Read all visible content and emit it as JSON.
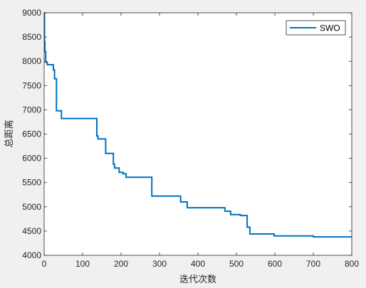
{
  "chart_data": {
    "type": "line",
    "title": "",
    "xlabel": "迭代次数",
    "ylabel": "总距离",
    "xlim": [
      0,
      800
    ],
    "ylim": [
      4000,
      9000
    ],
    "xticks": [
      0,
      100,
      200,
      300,
      400,
      500,
      600,
      700,
      800
    ],
    "yticks": [
      4000,
      4500,
      5000,
      5500,
      6000,
      6500,
      7000,
      7500,
      8000,
      8500,
      9000
    ],
    "grid": false,
    "legend": {
      "placement": "top-right"
    },
    "series": [
      {
        "name": "SWO",
        "color": "#0072bd",
        "step": true,
        "points": [
          [
            0,
            9000
          ],
          [
            1,
            8400
          ],
          [
            2,
            8200
          ],
          [
            4,
            7980
          ],
          [
            8,
            7930
          ],
          [
            24,
            7820
          ],
          [
            27,
            7640
          ],
          [
            32,
            6980
          ],
          [
            45,
            6820
          ],
          [
            137,
            6460
          ],
          [
            140,
            6400
          ],
          [
            160,
            6100
          ],
          [
            180,
            5880
          ],
          [
            183,
            5800
          ],
          [
            195,
            5710
          ],
          [
            205,
            5680
          ],
          [
            213,
            5610
          ],
          [
            280,
            5220
          ],
          [
            355,
            5100
          ],
          [
            372,
            4980
          ],
          [
            470,
            4910
          ],
          [
            485,
            4840
          ],
          [
            510,
            4820
          ],
          [
            528,
            4580
          ],
          [
            535,
            4440
          ],
          [
            598,
            4400
          ],
          [
            700,
            4380
          ],
          [
            800,
            4380
          ]
        ]
      }
    ]
  }
}
